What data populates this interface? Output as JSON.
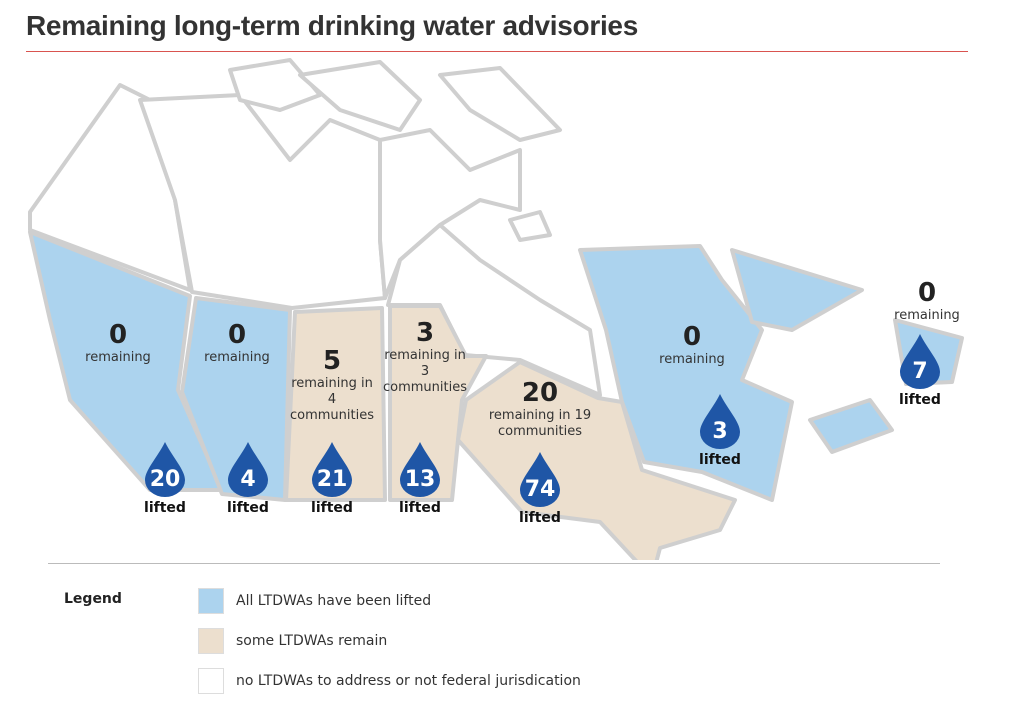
{
  "title": "Remaining long-term drinking water advisories",
  "colors": {
    "lifted": "#acd3ee",
    "remain": "#ecdfce",
    "none": "#ffffff",
    "drop": "#1f56a6",
    "rule": "#d9534f"
  },
  "regions": [
    {
      "id": "bc",
      "remaining": "0",
      "text": "remaining",
      "lifted": "20",
      "lifted_label": "lifted"
    },
    {
      "id": "ab",
      "remaining": "0",
      "text": "remaining",
      "lifted": "4",
      "lifted_label": "lifted"
    },
    {
      "id": "sk",
      "remaining": "5",
      "text": "remaining in 4 communities",
      "lifted": "21",
      "lifted_label": "lifted"
    },
    {
      "id": "mb",
      "remaining": "3",
      "text": "remaining in 3 communities",
      "lifted": "13",
      "lifted_label": "lifted"
    },
    {
      "id": "on",
      "remaining": "20",
      "text": "remaining in 19 communities",
      "lifted": "74",
      "lifted_label": "lifted"
    },
    {
      "id": "qc",
      "remaining": "0",
      "text": "remaining",
      "lifted": "3",
      "lifted_label": "lifted"
    },
    {
      "id": "atl",
      "remaining": "0",
      "text": "remaining",
      "lifted": "7",
      "lifted_label": "lifted"
    }
  ],
  "legend": {
    "title": "Legend",
    "items": [
      {
        "label": "All LTDWAs have been lifted"
      },
      {
        "label": "some LTDWAs remain"
      },
      {
        "label": "no LTDWAs to address or not federal jurisdication"
      }
    ]
  }
}
